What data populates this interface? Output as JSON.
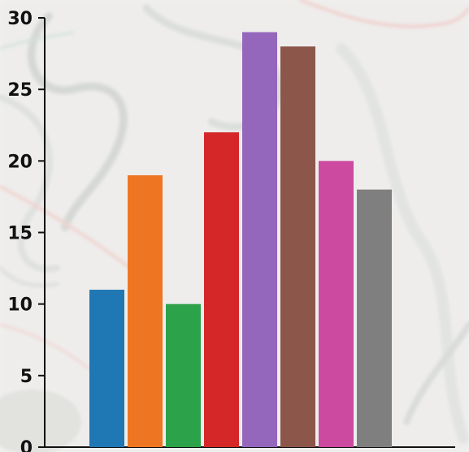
{
  "chart_data": {
    "type": "bar",
    "title": "",
    "xlabel": "",
    "ylabel": "",
    "categories": [
      "",
      "",
      "",
      "",
      "",
      "",
      "",
      ""
    ],
    "values": [
      11,
      19,
      10,
      22,
      29,
      28,
      20,
      18
    ],
    "colors": [
      "#1f77b4",
      "#ee7623",
      "#2ca24a",
      "#d62728",
      "#9467bd",
      "#8c564b",
      "#cc4aa0",
      "#7f7f7f"
    ],
    "ylim": [
      0,
      30
    ],
    "yticks": [
      0,
      5,
      10,
      15,
      20,
      25,
      30
    ],
    "grid": false,
    "legend": "none",
    "background": "faded hand-drawn sketch texture"
  }
}
